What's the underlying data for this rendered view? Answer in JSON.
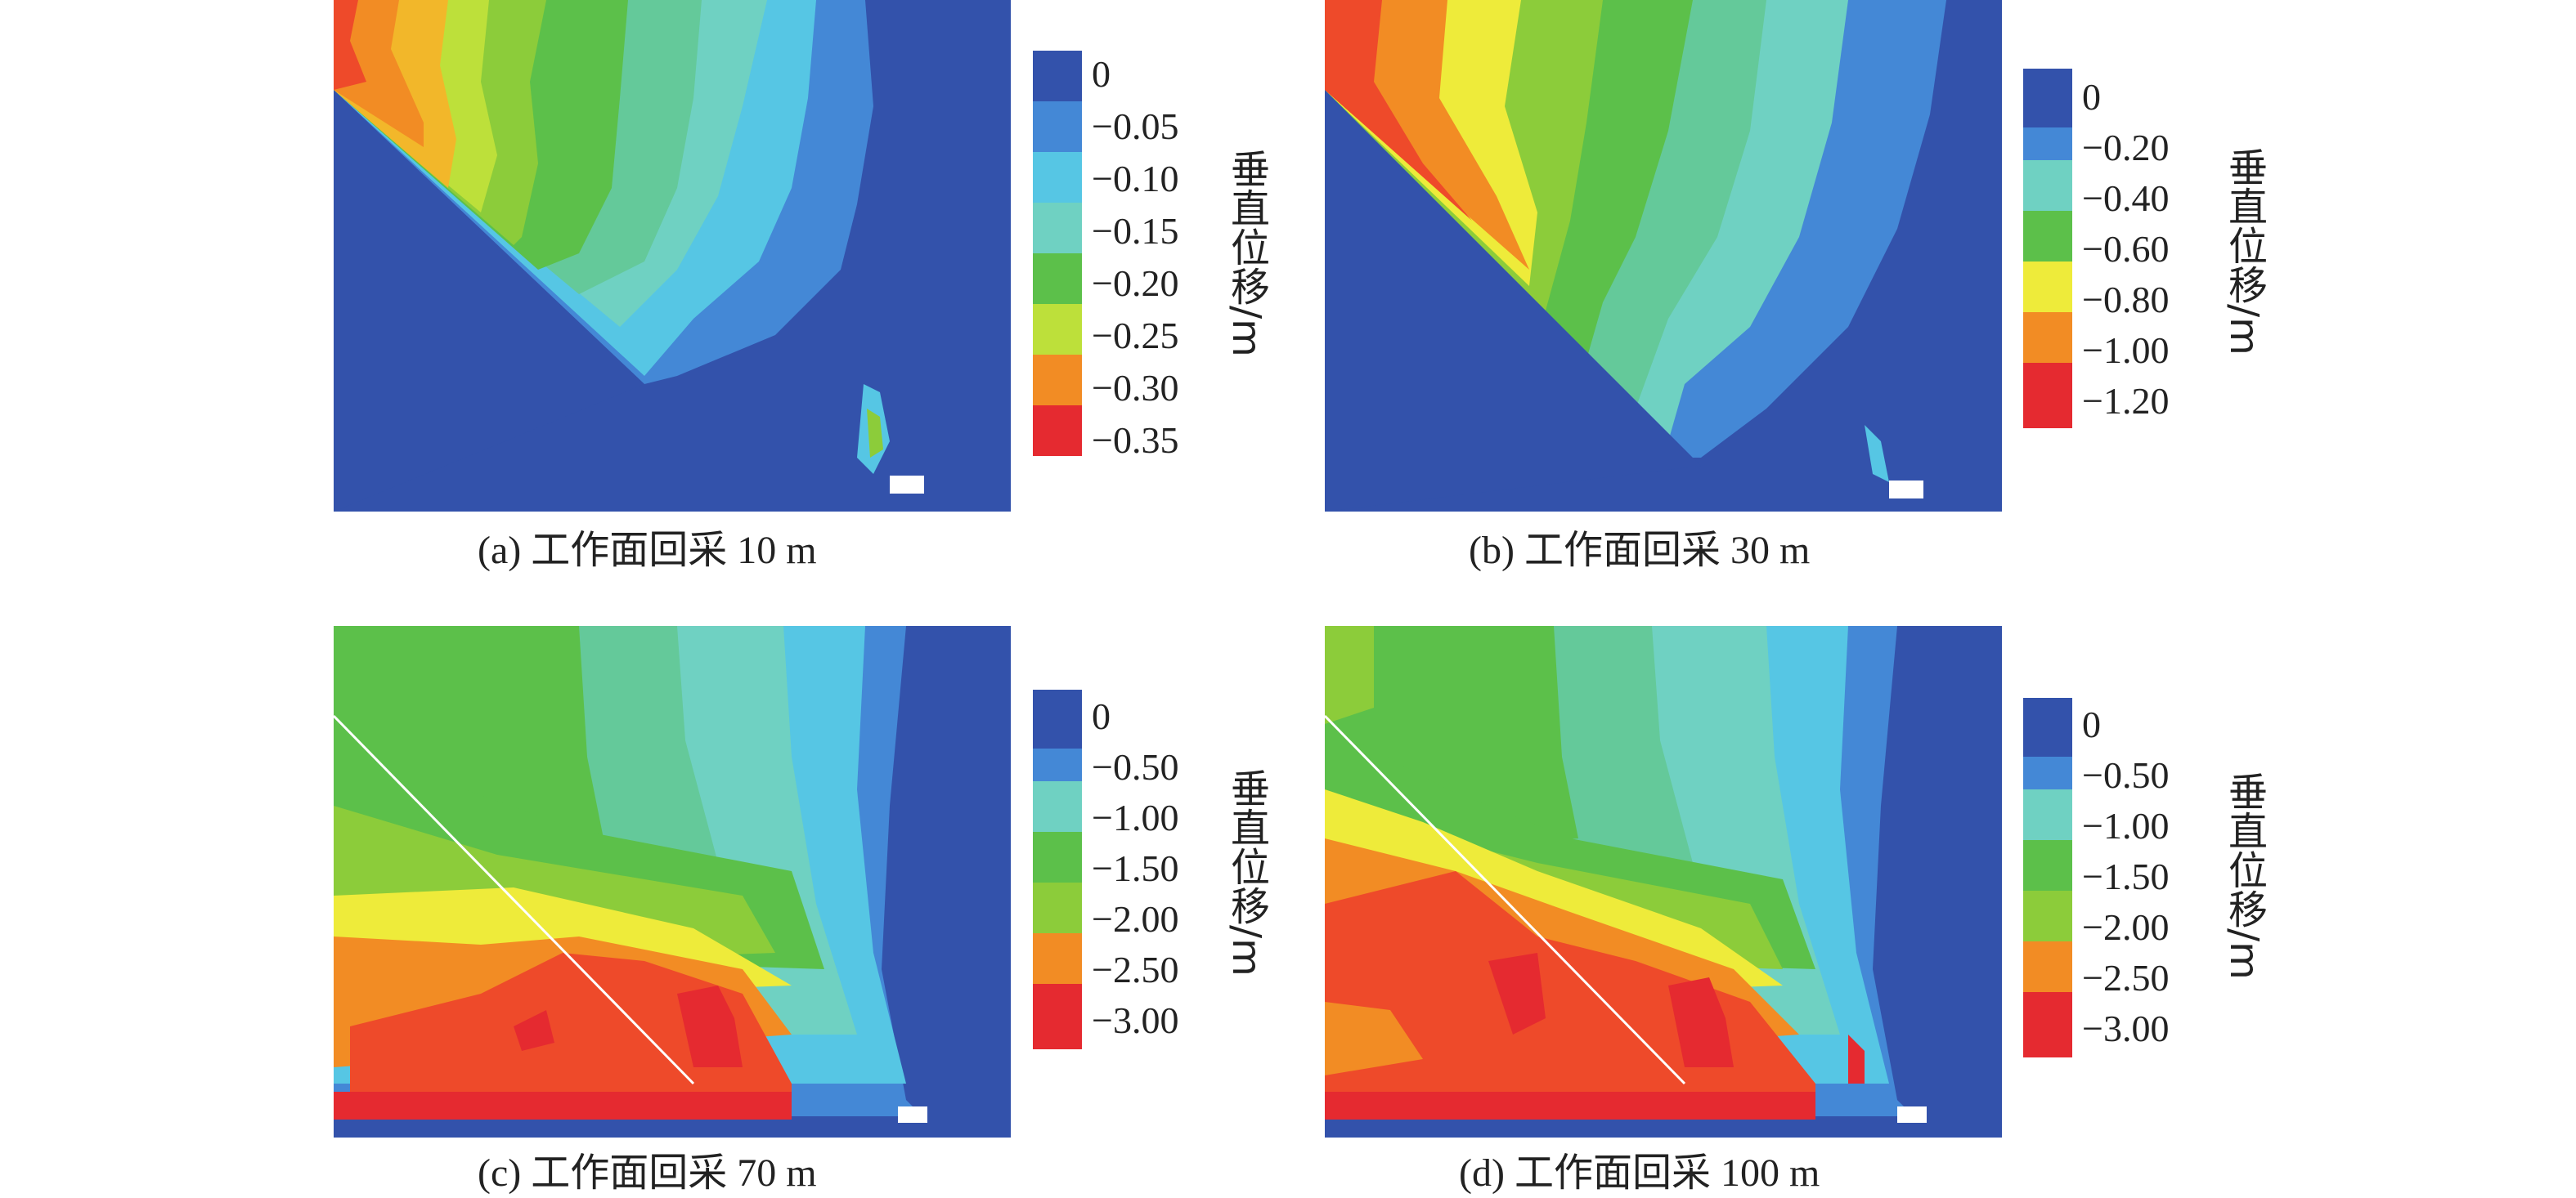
{
  "palette": {
    "dark_blue": "#3352ab",
    "mid_blue": "#4488d6",
    "light_blue": "#56c6e4",
    "cyan_green": "#6fd1c2",
    "teal_green": "#64c99a",
    "green": "#5cc04a",
    "light_green": "#8ccc3a",
    "yellow_green": "#bde03a",
    "yellow": "#eeeb3a",
    "orange_yellow": "#f2b72a",
    "orange": "#f28c24",
    "red_orange": "#ee4a2a",
    "red": "#e52a30"
  },
  "panels": [
    {
      "caption": "(a) 工作面回采 10 m",
      "legend_title": "垂直位移/m",
      "legend_ticks": [
        "0",
        "−0.05",
        "−0.10",
        "−0.15",
        "−0.20",
        "−0.25",
        "−0.30",
        "−0.35"
      ]
    },
    {
      "caption": "(b) 工作面回采 30 m",
      "legend_title": "垂直位移/m",
      "legend_ticks": [
        "0",
        "−0.20",
        "−0.40",
        "−0.60",
        "−0.80",
        "−1.00",
        "−1.20"
      ]
    },
    {
      "caption": "(c) 工作面回采 70 m",
      "legend_title": "垂直位移/m",
      "legend_ticks": [
        "0",
        "−0.50",
        "−1.00",
        "−1.50",
        "−2.00",
        "−2.50",
        "−3.00"
      ]
    },
    {
      "caption": "(d) 工作面回采 100 m",
      "legend_title": "垂直位移/m",
      "legend_ticks": [
        "0",
        "−0.50",
        "−1.00",
        "−1.50",
        "−2.00",
        "−2.50",
        "−3.00"
      ]
    }
  ]
}
